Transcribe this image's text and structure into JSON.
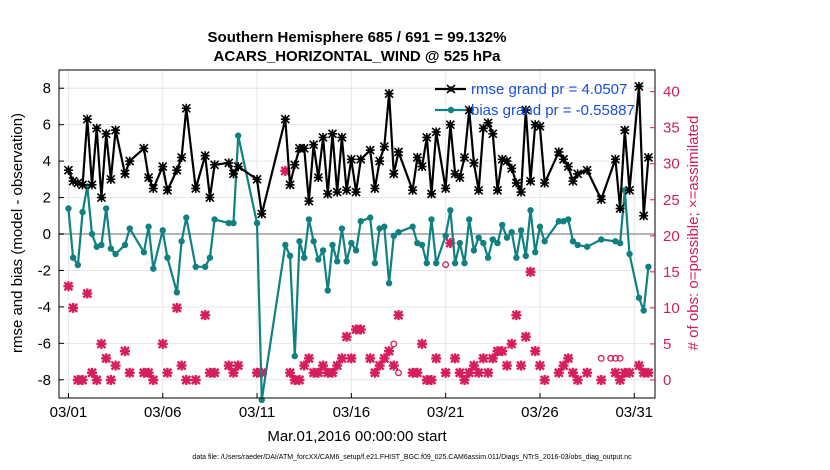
{
  "chart_data": {
    "type": "line",
    "title": "Southern Hemisphere 685 / 691 = 99.132%",
    "subtitle": "ACARS_HORIZONTAL_WIND @ 525 hPa",
    "xlabel": "Mar.01,2016 00:00:00 start",
    "ylabel": "rmse and bias (model - observation)",
    "ylabel_right": "# of obs: o=possible; ×=assimilated",
    "footnote": "data file: /Users/raeder/DAI/ATM_forcXX/CAM6_setup/f.e21.FHIST_BGC.f09_025.CAM6assim.011/Diags_NTrS_2016-03/obs_diag_output.nc",
    "xlim": [
      0.5,
      32.1
    ],
    "ylim": [
      -9,
      9
    ],
    "ylim_right": [
      -2.5,
      43
    ],
    "x_ticks": [
      1,
      6,
      11,
      16,
      21,
      26,
      31
    ],
    "x_tick_labels": [
      "03/01",
      "03/06",
      "03/11",
      "03/16",
      "03/21",
      "03/26",
      "03/31"
    ],
    "y_ticks": [
      -8,
      -6,
      -4,
      -2,
      0,
      2,
      4,
      6,
      8
    ],
    "y_tick_labels": [
      "-8",
      "-6",
      "-4",
      "-2",
      "0",
      "2",
      "4",
      "6",
      "8"
    ],
    "y_right_ticks": [
      0,
      5,
      10,
      15,
      20,
      25,
      30,
      35,
      40
    ],
    "y_right_tick_labels": [
      "0",
      "5",
      "10",
      "15",
      "20",
      "25",
      "30",
      "35",
      "40"
    ],
    "colors": {
      "rmse": "#000000",
      "bias": "#108080",
      "obs": "#d61e5c",
      "zero_line": "#b4b4b4",
      "grid": "#e6e6e6"
    },
    "series": [
      {
        "name": "rmse",
        "legend": "rmse grand pr = 4.0507",
        "x": [
          1.0,
          1.25,
          1.5,
          1.75,
          2.0,
          2.25,
          2.5,
          2.75,
          3.0,
          3.25,
          3.5,
          4.0,
          4.25,
          5.0,
          5.25,
          5.5,
          6.0,
          6.25,
          6.75,
          7.0,
          7.25,
          7.75,
          8.25,
          8.5,
          8.75,
          9.5,
          9.75,
          10.0,
          11.0,
          11.25,
          12.5,
          12.75,
          13.0,
          13.25,
          13.5,
          13.75,
          14.0,
          14.25,
          14.5,
          14.75,
          15.0,
          15.25,
          15.5,
          15.75,
          16.0,
          16.25,
          16.5,
          17.0,
          17.25,
          17.5,
          17.75,
          18.0,
          18.25,
          18.5,
          19.25,
          19.5,
          19.75,
          20.0,
          20.25,
          20.5,
          21.0,
          21.25,
          21.5,
          21.75,
          22.0,
          22.25,
          22.5,
          22.75,
          23.0,
          23.25,
          23.5,
          23.75,
          24.0,
          24.25,
          24.5,
          24.75,
          25.0,
          25.25,
          25.5,
          25.75,
          26.0,
          26.25,
          27.0,
          27.25,
          27.5,
          27.75,
          28.0,
          28.5,
          29.25,
          30.0,
          30.25,
          30.5,
          30.75,
          31.25,
          31.5,
          31.75
        ],
        "values": [
          3.5,
          2.9,
          2.8,
          2.7,
          6.3,
          2.7,
          5.8,
          2.0,
          5.5,
          3.0,
          5.7,
          3.3,
          4.0,
          4.7,
          3.1,
          2.5,
          3.7,
          2.4,
          3.5,
          4.2,
          6.9,
          2.5,
          4.3,
          2.0,
          3.8,
          3.9,
          3.3,
          3.7,
          3.0,
          1.1,
          6.3,
          2.7,
          3.8,
          4.7,
          4.7,
          1.8,
          4.9,
          3.1,
          5.3,
          2.2,
          5.5,
          2.3,
          5.3,
          2.4,
          4.1,
          2.3,
          4.1,
          4.6,
          2.5,
          4.0,
          4.8,
          7.7,
          3.3,
          4.5,
          2.4,
          4.2,
          3.7,
          5.3,
          2.2,
          5.6,
          2.5,
          6.0,
          3.3,
          3.1,
          4.2,
          6.8,
          3.9,
          2.4,
          5.8,
          6.1,
          5.5,
          2.4,
          4.1,
          4.0,
          3.6,
          2.8,
          2.3,
          6.8,
          2.9,
          6.0,
          5.9,
          2.8,
          4.5,
          4.1,
          3.7,
          2.9,
          3.3,
          3.5,
          1.9,
          4.1,
          1.4,
          5.7,
          2.4,
          8.1,
          1.0,
          4.2
        ]
      },
      {
        "name": "bias",
        "legend": "bias grand pr = -0.55887",
        "x": [
          1.0,
          1.25,
          1.5,
          1.75,
          2.0,
          2.25,
          2.5,
          2.75,
          3.0,
          3.25,
          3.5,
          4.0,
          4.25,
          5.0,
          5.25,
          5.5,
          6.0,
          6.25,
          6.75,
          7.0,
          7.25,
          7.75,
          8.25,
          8.5,
          8.75,
          9.5,
          9.75,
          10.0,
          11.0,
          11.25,
          12.5,
          12.75,
          13.0,
          13.25,
          13.5,
          13.75,
          14.0,
          14.25,
          14.5,
          14.75,
          15.0,
          15.25,
          15.5,
          15.75,
          16.0,
          16.25,
          16.5,
          17.0,
          17.25,
          17.5,
          17.75,
          18.0,
          18.25,
          18.5,
          19.25,
          19.5,
          19.75,
          20.0,
          20.25,
          20.5,
          21.0,
          21.25,
          21.5,
          21.75,
          22.0,
          22.25,
          22.5,
          22.75,
          23.0,
          23.25,
          23.5,
          23.75,
          24.0,
          24.25,
          24.5,
          24.75,
          25.0,
          25.25,
          25.5,
          25.75,
          26.0,
          26.25,
          27.0,
          27.25,
          27.5,
          27.75,
          28.0,
          28.5,
          29.25,
          30.0,
          30.25,
          30.5,
          30.75,
          31.25,
          31.5,
          31.75
        ],
        "values": [
          1.4,
          -1.3,
          -1.7,
          1.2,
          2.6,
          0.0,
          -0.7,
          -0.6,
          1.4,
          -0.8,
          -1.1,
          -0.6,
          0.3,
          -1.0,
          0.4,
          -1.9,
          0.2,
          -1.3,
          -3.2,
          -0.4,
          0.9,
          -1.8,
          -1.8,
          -1.3,
          0.8,
          0.6,
          0.6,
          5.4,
          0.6,
          -9.1,
          -0.6,
          -1.2,
          -6.7,
          -0.4,
          -1.3,
          0.8,
          -0.4,
          -1.4,
          -0.9,
          -3.1,
          -0.6,
          -1.5,
          0.3,
          -1.5,
          -0.5,
          -0.9,
          0.7,
          0.9,
          -1.6,
          0.3,
          0.4,
          -2.7,
          -0.1,
          0.1,
          0.4,
          -0.5,
          -0.6,
          -1.6,
          0.8,
          -1.6,
          -0.1,
          1.3,
          -1.6,
          -0.5,
          -1.6,
          0.8,
          -0.9,
          -0.2,
          -0.5,
          -1.3,
          -0.3,
          -0.5,
          0.5,
          -0.2,
          0.1,
          -1.3,
          0.2,
          -1.2,
          1.3,
          -1.0,
          0.4,
          -0.4,
          0.7,
          0.7,
          0.8,
          -0.4,
          -0.6,
          -0.7,
          -0.3,
          -0.4,
          -0.5,
          2.4,
          -1.1,
          -3.5,
          -4.2,
          -1.8
        ]
      }
    ],
    "obs_assimilated": {
      "x": [
        1.0,
        1.25,
        1.5,
        1.75,
        2.0,
        2.25,
        2.5,
        2.75,
        3.0,
        3.25,
        3.5,
        4.0,
        4.25,
        5.0,
        5.25,
        5.5,
        6.0,
        6.25,
        6.75,
        7.0,
        7.25,
        7.75,
        8.25,
        8.5,
        8.75,
        9.5,
        9.75,
        10.0,
        11.0,
        11.25,
        12.5,
        12.75,
        13.0,
        13.25,
        13.5,
        13.75,
        14.0,
        14.25,
        14.5,
        14.75,
        15.0,
        15.25,
        15.5,
        15.75,
        16.0,
        16.25,
        16.5,
        17.0,
        17.25,
        17.5,
        17.75,
        18.0,
        18.25,
        18.5,
        19.25,
        19.5,
        19.75,
        20.0,
        20.25,
        20.5,
        21.0,
        21.25,
        21.5,
        21.75,
        22.0,
        22.25,
        22.5,
        22.75,
        23.0,
        23.25,
        23.5,
        23.75,
        24.0,
        24.25,
        24.5,
        24.75,
        25.0,
        25.25,
        25.5,
        25.75,
        26.0,
        26.25,
        27.0,
        27.25,
        27.5,
        27.75,
        28.0,
        28.5,
        29.25,
        30.0,
        30.25,
        30.5,
        30.75,
        31.25,
        31.5,
        31.75
      ],
      "values": [
        13,
        10,
        0,
        0,
        12,
        1,
        0,
        5,
        3,
        0,
        2,
        4,
        1,
        1,
        1,
        0,
        5,
        1,
        10,
        2,
        0,
        0,
        9,
        1,
        1,
        2,
        1,
        2,
        1,
        1,
        29,
        1,
        0,
        0,
        2,
        3,
        1,
        1,
        2,
        1,
        1,
        2,
        3,
        6,
        3,
        7,
        7,
        3,
        1,
        2,
        3,
        4,
        2,
        9,
        1,
        1,
        5,
        0,
        0,
        3,
        1,
        19,
        3,
        1,
        0,
        1,
        2,
        1,
        3,
        1,
        3,
        4,
        4,
        2,
        5,
        9,
        2,
        6,
        15,
        4,
        2,
        0,
        1,
        2,
        3,
        1,
        0,
        1,
        0,
        1,
        0,
        1,
        1,
        2,
        1,
        1
      ],
      "note": "x marks = assimilated counts per time bin (right axis)"
    },
    "obs_possible": {
      "x": [
        18.25,
        18.5,
        21.0,
        29.25,
        29.75,
        30.0,
        30.25
      ],
      "values": [
        5,
        1,
        16,
        3,
        3,
        3,
        3
      ],
      "note": "o marks = possible counts where they differ from assimilated (right axis)"
    }
  }
}
